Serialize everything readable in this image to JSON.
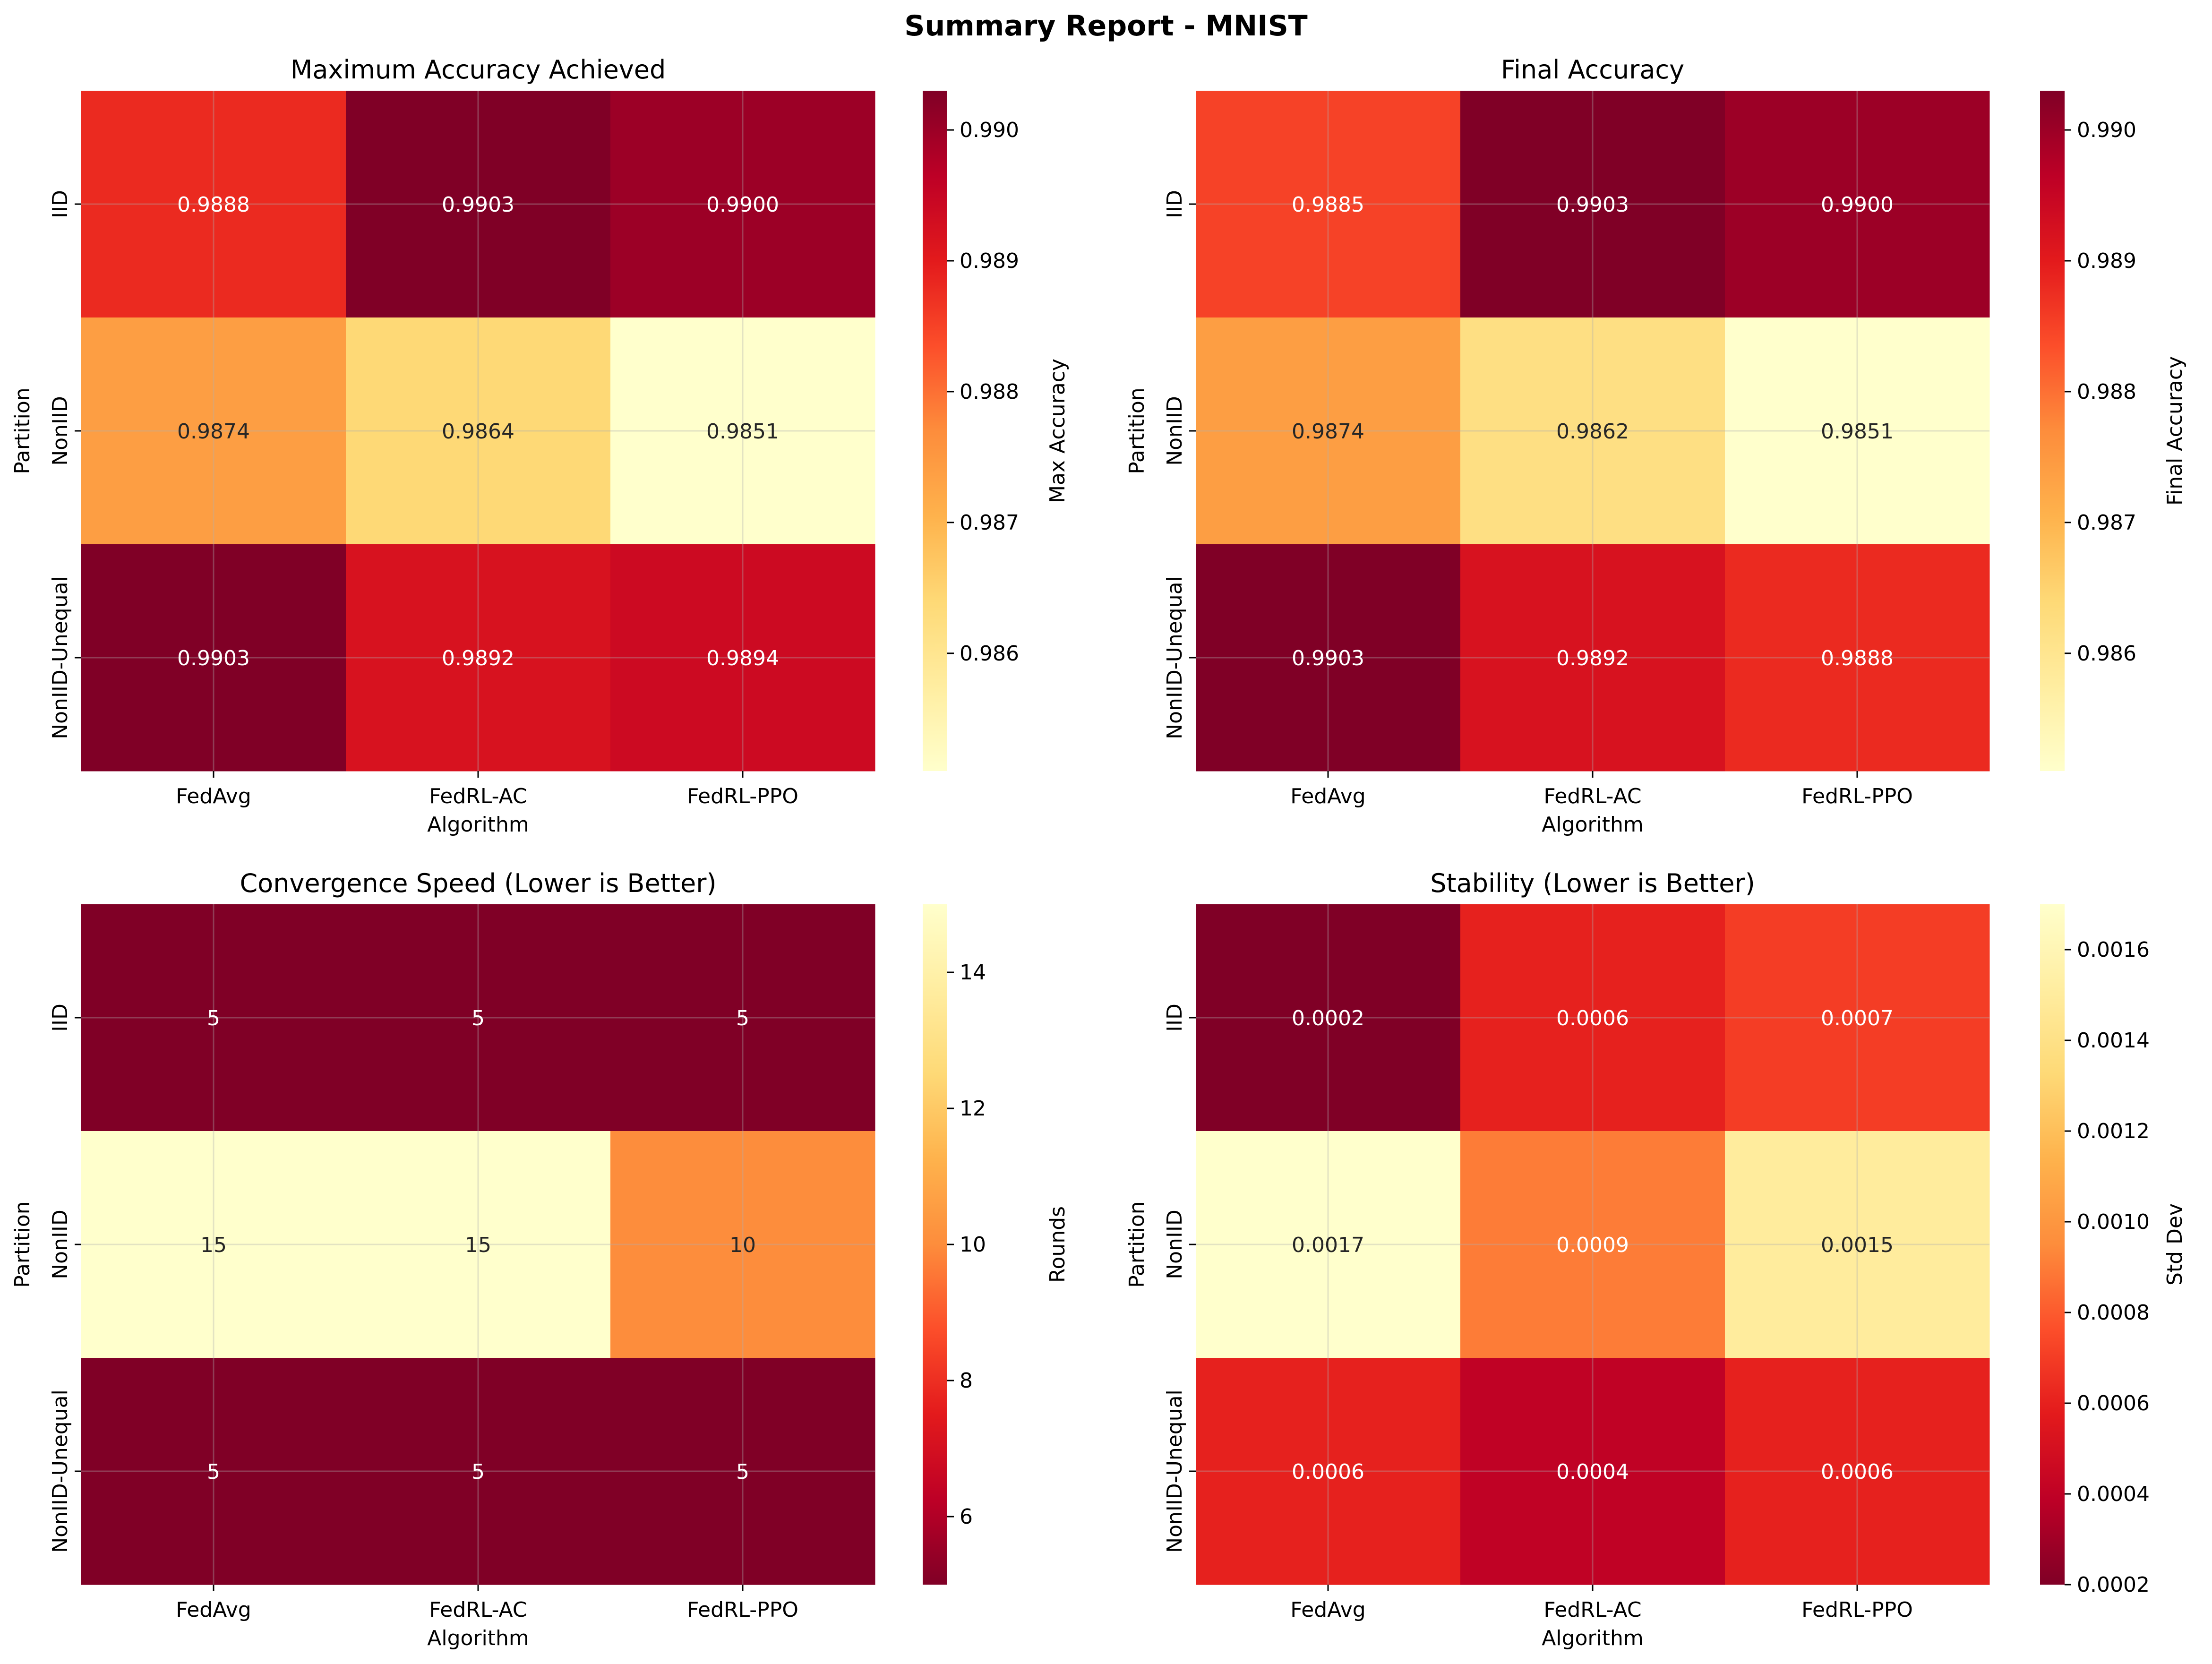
{
  "figure": {
    "title": "Summary Report - MNIST"
  },
  "colormap": {
    "name": "YlOrRd",
    "stops": [
      "#ffffcc",
      "#ffeda0",
      "#fed976",
      "#feb24c",
      "#fd8d3c",
      "#fc4e2a",
      "#e31a1c",
      "#bd0026",
      "#800026"
    ]
  },
  "chart_data": [
    {
      "type": "heatmap",
      "title": "Maximum Accuracy Achieved",
      "xlabel": "Algorithm",
      "ylabel": "Partition",
      "x_categories": [
        "FedAvg",
        "FedRL-AC",
        "FedRL-PPO"
      ],
      "y_categories": [
        "IID",
        "NonIID",
        "NonIID-Unequal"
      ],
      "values": [
        [
          0.9888,
          0.9903,
          0.99
        ],
        [
          0.9874,
          0.9864,
          0.9851
        ],
        [
          0.9903,
          0.9892,
          0.9894
        ]
      ],
      "cell_labels": [
        [
          "0.9888",
          "0.9903",
          "0.9900"
        ],
        [
          "0.9874",
          "0.9864",
          "0.9851"
        ],
        [
          "0.9903",
          "0.9892",
          "0.9894"
        ]
      ],
      "colorbar_label": "Max Accuracy",
      "colorbar_range": [
        0.9851,
        0.9903
      ],
      "colorbar_reversed": false,
      "colorbar_ticks": [
        0.986,
        0.987,
        0.988,
        0.989,
        0.99
      ],
      "colorbar_tick_labels": [
        "0.986",
        "0.987",
        "0.988",
        "0.989",
        "0.990"
      ],
      "grid": true
    },
    {
      "type": "heatmap",
      "title": "Final Accuracy",
      "xlabel": "Algorithm",
      "ylabel": "Partition",
      "x_categories": [
        "FedAvg",
        "FedRL-AC",
        "FedRL-PPO"
      ],
      "y_categories": [
        "IID",
        "NonIID",
        "NonIID-Unequal"
      ],
      "values": [
        [
          0.9885,
          0.9903,
          0.99
        ],
        [
          0.9874,
          0.9862,
          0.9851
        ],
        [
          0.9903,
          0.9892,
          0.9888
        ]
      ],
      "cell_labels": [
        [
          "0.9885",
          "0.9903",
          "0.9900"
        ],
        [
          "0.9874",
          "0.9862",
          "0.9851"
        ],
        [
          "0.9903",
          "0.9892",
          "0.9888"
        ]
      ],
      "colorbar_label": "Final Accuracy",
      "colorbar_range": [
        0.9851,
        0.9903
      ],
      "colorbar_reversed": false,
      "colorbar_ticks": [
        0.986,
        0.987,
        0.988,
        0.989,
        0.99
      ],
      "colorbar_tick_labels": [
        "0.986",
        "0.987",
        "0.988",
        "0.989",
        "0.990"
      ],
      "grid": true
    },
    {
      "type": "heatmap",
      "title": "Convergence Speed (Lower is Better)",
      "xlabel": "Algorithm",
      "ylabel": "Partition",
      "x_categories": [
        "FedAvg",
        "FedRL-AC",
        "FedRL-PPO"
      ],
      "y_categories": [
        "IID",
        "NonIID",
        "NonIID-Unequal"
      ],
      "values": [
        [
          5,
          5,
          5
        ],
        [
          15,
          15,
          10
        ],
        [
          5,
          5,
          5
        ]
      ],
      "cell_labels": [
        [
          "5",
          "5",
          "5"
        ],
        [
          "15",
          "15",
          "10"
        ],
        [
          "5",
          "5",
          "5"
        ]
      ],
      "colorbar_label": "Rounds",
      "colorbar_range": [
        5,
        15
      ],
      "colorbar_reversed": true,
      "colorbar_ticks": [
        6,
        8,
        10,
        12,
        14
      ],
      "colorbar_tick_labels": [
        "6",
        "8",
        "10",
        "12",
        "14"
      ],
      "grid": true
    },
    {
      "type": "heatmap",
      "title": "Stability (Lower is Better)",
      "xlabel": "Algorithm",
      "ylabel": "Partition",
      "x_categories": [
        "FedAvg",
        "FedRL-AC",
        "FedRL-PPO"
      ],
      "y_categories": [
        "IID",
        "NonIID",
        "NonIID-Unequal"
      ],
      "values": [
        [
          0.0002,
          0.0006,
          0.0007
        ],
        [
          0.0017,
          0.0009,
          0.0015
        ],
        [
          0.0006,
          0.0004,
          0.0006
        ]
      ],
      "cell_labels": [
        [
          "0.0002",
          "0.0006",
          "0.0007"
        ],
        [
          "0.0017",
          "0.0009",
          "0.0015"
        ],
        [
          "0.0006",
          "0.0004",
          "0.0006"
        ]
      ],
      "colorbar_label": "Std Dev",
      "colorbar_range": [
        0.0002,
        0.0017
      ],
      "colorbar_reversed": true,
      "colorbar_ticks": [
        0.0002,
        0.0004,
        0.0006,
        0.0008,
        0.001,
        0.0012,
        0.0014,
        0.0016
      ],
      "colorbar_tick_labels": [
        "0.0002",
        "0.0004",
        "0.0006",
        "0.0008",
        "0.0010",
        "0.0012",
        "0.0014",
        "0.0016"
      ],
      "grid": true
    }
  ]
}
